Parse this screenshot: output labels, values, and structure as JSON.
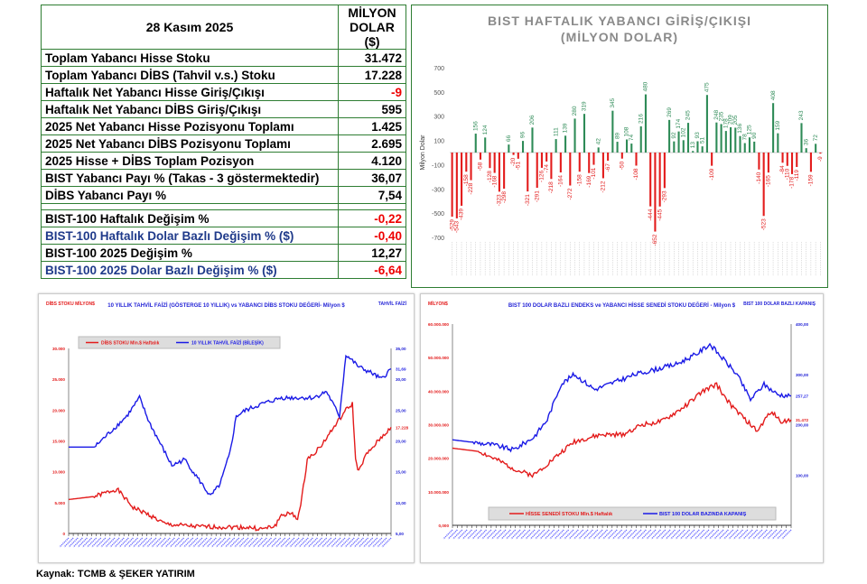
{
  "table": {
    "date": "28 Kasım 2025",
    "unit_header": "MİLYON DOLAR ($)",
    "rows": [
      {
        "label": "Toplam Yabancı Hisse Stoku",
        "value": "31.472",
        "label_color": "#000",
        "value_color": "#000"
      },
      {
        "label": "Toplam Yabancı DİBS (Tahvil v.s.)  Stoku",
        "value": "17.228",
        "label_color": "#000",
        "value_color": "#000"
      },
      {
        "label": "Haftalık Net Yabancı Hisse Giriş/Çıkışı",
        "value": "-9",
        "label_color": "#000",
        "value_color": "#e00"
      },
      {
        "label": "Haftalık Net Yabancı DİBS Giriş/Çıkışı",
        "value": "595",
        "label_color": "#000",
        "value_color": "#000"
      },
      {
        "label": "2025 Net Yabancı Hisse Pozisyonu Toplamı",
        "value": "1.425",
        "label_color": "#000",
        "value_color": "#000"
      },
      {
        "label": "2025 Net Yabancı DİBS Pozisyonu Toplamı",
        "value": "2.695",
        "label_color": "#000",
        "value_color": "#000"
      },
      {
        "label": "2025 Hisse + DİBS Toplam Pozisyon",
        "value": "4.120",
        "label_color": "#000",
        "value_color": "#000"
      },
      {
        "label": "BIST Yabancı Payı %  (Takas - 3 göstermektedir)",
        "value": "36,07",
        "label_color": "#000",
        "value_color": "#000"
      },
      {
        "label": "DİBS Yabancı Payı  %",
        "value": "7,54",
        "label_color": "#000",
        "value_color": "#000"
      },
      {
        "label": "",
        "value": "",
        "blank": true
      },
      {
        "label": "BIST-100 Haftalık Değişim %",
        "value": "-0,22",
        "label_color": "#000",
        "value_color": "#e00"
      },
      {
        "label": "BIST-100 Haftalık Dolar Bazlı Değişim % ($)",
        "value": "-0,40",
        "label_color": "#1f3a8a",
        "value_color": "#e00"
      },
      {
        "label": "BIST-100 2025 Değişim %",
        "value": "12,27",
        "label_color": "#000",
        "value_color": "#000"
      },
      {
        "label": "BIST-100 2025 Dolar Bazlı Değişim % ($)",
        "value": "-6,64",
        "label_color": "#1f3a8a",
        "value_color": "#e00"
      }
    ]
  },
  "chart_data": [
    {
      "type": "bar",
      "title": "BIST HAFTALIK YABANCI GİRİŞ/ÇIKIŞI (MİLYON DOLAR)",
      "ylabel": "Milyon Dolar",
      "ylim": [
        -700,
        700
      ],
      "yticks": [
        700,
        500,
        300,
        100,
        -100,
        -300,
        -500,
        -700
      ],
      "values": [
        -529,
        -543,
        -439,
        -158,
        -228,
        156,
        -58,
        124,
        -128,
        -168,
        -323,
        -298,
        66,
        -20,
        -51,
        96,
        -321,
        206,
        -291,
        -126,
        -74,
        -218,
        111,
        -164,
        139,
        -272,
        280,
        -158,
        319,
        -169,
        -101,
        42,
        -212,
        -67,
        345,
        89,
        -50,
        108,
        74,
        -108,
        216,
        480,
        -444,
        -652,
        -445,
        -293,
        269,
        92,
        174,
        102,
        245,
        13,
        93,
        51,
        475,
        -109,
        248,
        235,
        178,
        209,
        205,
        136,
        78,
        125,
        90,
        -140,
        -523,
        -165,
        408,
        159,
        -84,
        -110,
        -178,
        -119,
        243,
        36,
        -159,
        72,
        -9
      ],
      "colors": {
        "pos": "#2e8b57",
        "neg": "#e31b1b"
      }
    },
    {
      "type": "line",
      "title": "10 YILLIK TAHVİL FAİZİ (GÖSTERGE  10 YILLIK) vs YABANCI DİBS STOKU DEĞERİ-  Milyon $",
      "left_axis_title": "DİBS STOKU MİLYON$",
      "right_axis_title": "TAHVİL FAİZİ",
      "yleft": {
        "lim": [
          0,
          30000
        ],
        "ticks": [
          "0",
          "5.000",
          "10.000",
          "15.000",
          "20.000",
          "25.000",
          "30.000"
        ]
      },
      "yright": {
        "lim": [
          5,
          35
        ],
        "ticks": [
          "5,00",
          "10,00",
          "15,00",
          "20,00",
          "25,00",
          "30,00",
          "35,00"
        ]
      },
      "series": [
        {
          "name": "DİBS STOKU Mln.$ Haftalık",
          "axis": "left",
          "color": "#e31b1b",
          "end_label": "17.228",
          "points": [
            [
              0,
              5500
            ],
            [
              8,
              6000
            ],
            [
              15,
              7200
            ],
            [
              20,
              4200
            ],
            [
              25,
              3000
            ],
            [
              30,
              1500
            ],
            [
              40,
              1100
            ],
            [
              55,
              1000
            ],
            [
              60,
              700
            ],
            [
              64,
              1200
            ],
            [
              66,
              3000
            ],
            [
              69,
              3200
            ],
            [
              71,
              2500
            ],
            [
              72,
              4500
            ],
            [
              74,
              12000
            ],
            [
              78,
              14000
            ],
            [
              82,
              17000
            ],
            [
              86,
              20000
            ],
            [
              88,
              21000
            ],
            [
              89,
              12000
            ],
            [
              90,
              10000
            ],
            [
              92,
              12500
            ],
            [
              96,
              15000
            ],
            [
              100,
              17228
            ]
          ]
        },
        {
          "name": "10 YILLIK TAHVİL FAİZİ (BİLEŞİK)",
          "axis": "right",
          "color": "#1a1ae6",
          "end_label": "31,69",
          "points": [
            [
              0,
              19
            ],
            [
              8,
              19
            ],
            [
              12,
              21
            ],
            [
              18,
              24
            ],
            [
              22,
              27
            ],
            [
              25,
              23
            ],
            [
              28,
              20
            ],
            [
              32,
              16
            ],
            [
              36,
              17
            ],
            [
              40,
              14
            ],
            [
              44,
              11
            ],
            [
              47,
              13
            ],
            [
              50,
              18
            ],
            [
              52,
              24
            ],
            [
              55,
              25
            ],
            [
              60,
              26
            ],
            [
              66,
              27
            ],
            [
              72,
              27
            ],
            [
              76,
              27
            ],
            [
              80,
              28
            ],
            [
              82,
              26
            ],
            [
              84,
              24
            ],
            [
              86,
              34
            ],
            [
              88,
              33
            ],
            [
              90,
              32
            ],
            [
              94,
              31
            ],
            [
              97,
              30
            ],
            [
              100,
              31.69
            ]
          ]
        }
      ]
    },
    {
      "type": "line",
      "title": "BIST 100 DOLAR BAZLI  ENDEKS  ve YABANCI  HİSSE SENEDİ  STOKU  DEĞERİ -  Milyon $",
      "left_axis_title": "MİLYON$",
      "right_axis_title": "BIST 100 DOLAR BAZLI KAPANIŞ",
      "yleft": {
        "lim": [
          0,
          60000000
        ],
        "ticks": [
          "0,000",
          "10.000.000",
          "20.000.000",
          "30.000.000",
          "40.000.000",
          "50.000.000",
          "60.000.000"
        ]
      },
      "yright": {
        "lim": [
          0,
          400
        ],
        "ticks": [
          "100,00",
          "200,00",
          "300,00",
          "400,00"
        ],
        "tick_values": [
          100,
          200,
          300,
          400
        ]
      },
      "series": [
        {
          "name": "HİSSE SENEDİ STOKU  Mln.$ Haftalık",
          "axis": "left",
          "color": "#e31b1b",
          "end_label": "31.472",
          "points": [
            [
              0,
              23000000
            ],
            [
              8,
              22000000
            ],
            [
              14,
              19000000
            ],
            [
              20,
              16000000
            ],
            [
              24,
              15000000
            ],
            [
              30,
              20000000
            ],
            [
              36,
              25000000
            ],
            [
              44,
              27000000
            ],
            [
              50,
              27000000
            ],
            [
              56,
              30000000
            ],
            [
              62,
              31000000
            ],
            [
              68,
              35000000
            ],
            [
              74,
              40000000
            ],
            [
              78,
              42000000
            ],
            [
              82,
              36000000
            ],
            [
              86,
              32000000
            ],
            [
              90,
              28000000
            ],
            [
              94,
              34000000
            ],
            [
              97,
              31000000
            ],
            [
              100,
              31472000
            ]
          ]
        },
        {
          "name": "BIST 100 DOLAR BAZINDA KAPANIŞ",
          "axis": "right",
          "color": "#1a1ae6",
          "end_label": "257,27",
          "points": [
            [
              0,
              170
            ],
            [
              6,
              165
            ],
            [
              12,
              160
            ],
            [
              18,
              150
            ],
            [
              24,
              175
            ],
            [
              28,
              210
            ],
            [
              32,
              280
            ],
            [
              36,
              300
            ],
            [
              42,
              270
            ],
            [
              48,
              285
            ],
            [
              54,
              300
            ],
            [
              60,
              310
            ],
            [
              66,
              320
            ],
            [
              72,
              340
            ],
            [
              76,
              360
            ],
            [
              80,
              330
            ],
            [
              84,
              300
            ],
            [
              88,
              250
            ],
            [
              92,
              280
            ],
            [
              96,
              260
            ],
            [
              100,
              257.27
            ]
          ]
        }
      ]
    }
  ],
  "source": "Kaynak: TCMB & ŞEKER YATIRIM"
}
